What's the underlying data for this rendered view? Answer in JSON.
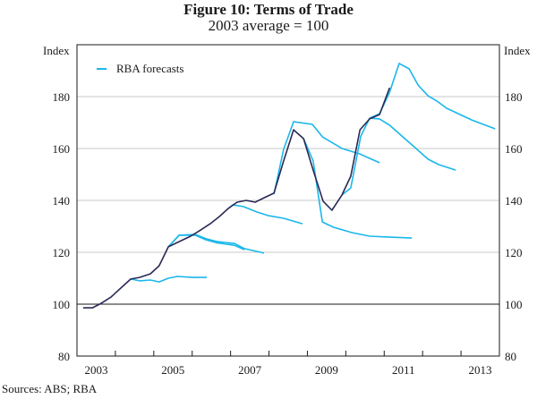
{
  "chart_data": {
    "type": "line",
    "title": "Figure 10: Terms of Trade",
    "subtitle": "2003 average = 100",
    "ylabel_left": "Index",
    "ylabel_right": "Index",
    "xlabel": "",
    "xlim": [
      2003,
      2014
    ],
    "ylim": [
      80,
      200
    ],
    "y_ticks": [
      80,
      100,
      120,
      140,
      160,
      180
    ],
    "x_tick_labels": [
      "2003",
      "2005",
      "2007",
      "2009",
      "2011",
      "2013"
    ],
    "x_tick_label_years": [
      2003,
      2005,
      2007,
      2009,
      2011,
      2013
    ],
    "grid": true,
    "reference_line": 100,
    "legend": {
      "position": "top-left",
      "entries": [
        {
          "label": "RBA forecasts",
          "color": "#1ab7ea"
        }
      ]
    },
    "colors": {
      "actual": "#2a2a55",
      "forecast": "#1ab7ea",
      "grid": "#c8c8c8",
      "axis": "#1a1a1a"
    },
    "series": [
      {
        "name": "Actual",
        "x": [
          2003.16,
          2003.4,
          2003.63,
          2003.89,
          2004.17,
          2004.4,
          2004.63,
          2004.91,
          2005.14,
          2005.38,
          2005.66,
          2005.96,
          2006.19,
          2006.47,
          2006.71,
          2006.94,
          2007.17,
          2007.41,
          2007.64,
          2007.87,
          2008.13,
          2008.38,
          2008.64,
          2008.9,
          2009.15,
          2009.41,
          2009.64,
          2009.9,
          2010.13,
          2010.37,
          2010.62,
          2010.88,
          2011.14
        ],
        "values": [
          98.6,
          98.6,
          100.3,
          102.8,
          106.6,
          109.7,
          110.3,
          111.7,
          114.8,
          122.1,
          124.1,
          126.2,
          128.3,
          131.0,
          133.8,
          136.9,
          139.3,
          140.0,
          139.3,
          141.0,
          142.8,
          155.2,
          167.2,
          163.8,
          151.7,
          139.7,
          136.2,
          142.1,
          149.3,
          167.2,
          171.4,
          173.1,
          183.4
        ]
      },
      {
        "name": "RBA forecast 1",
        "x": [
          2004.4,
          2004.63,
          2004.91,
          2005.14,
          2005.38,
          2005.61,
          2006.03,
          2006.38
        ],
        "values": [
          109.7,
          109.0,
          109.3,
          108.6,
          110.0,
          110.7,
          110.3,
          110.3
        ]
      },
      {
        "name": "RBA forecast 2",
        "x": [
          2005.38,
          2005.66,
          2006.08,
          2006.36,
          2006.66,
          2007.1,
          2007.36,
          2007.87
        ],
        "values": [
          122.1,
          126.6,
          126.9,
          125.2,
          124.1,
          123.4,
          121.4,
          119.7
        ]
      },
      {
        "name": "RBA forecast 2b",
        "x": [
          2005.38,
          2005.66,
          2006.08,
          2006.36,
          2006.66,
          2007.1,
          2007.36
        ],
        "values": [
          122.1,
          126.6,
          126.6,
          124.8,
          123.6,
          122.7,
          121.0
        ]
      },
      {
        "name": "RBA forecast 3",
        "x": [
          2006.94,
          2007.06,
          2007.34,
          2007.69,
          2007.99,
          2008.38,
          2008.87
        ],
        "values": [
          136.9,
          138.3,
          137.6,
          135.5,
          134.1,
          133.1,
          131.0
        ]
      },
      {
        "name": "RBA forecast 4",
        "x": [
          2008.13,
          2008.38,
          2008.64,
          2009.13,
          2009.39,
          2009.9,
          2010.37,
          2010.62,
          2010.88
        ],
        "values": [
          142.4,
          159.7,
          170.3,
          169.3,
          164.5,
          160.0,
          157.9,
          156.2,
          154.5
        ]
      },
      {
        "name": "RBA forecast 5",
        "x": [
          2008.9,
          2009.15,
          2009.39,
          2009.67,
          2010.16,
          2010.62,
          2011.09,
          2011.72
        ],
        "values": [
          163.8,
          155.2,
          131.7,
          129.7,
          127.6,
          126.2,
          125.9,
          125.5
        ]
      },
      {
        "name": "RBA forecast 6",
        "x": [
          2009.9,
          2010.13,
          2010.39,
          2010.62,
          2010.88,
          2011.14,
          2011.48,
          2011.83,
          2012.14,
          2012.42,
          2012.86
        ],
        "values": [
          142.1,
          144.8,
          164.8,
          171.7,
          171.4,
          169.0,
          164.5,
          160.0,
          155.9,
          153.8,
          151.7
        ]
      },
      {
        "name": "RBA forecast 7",
        "x": [
          2010.62,
          2010.88,
          2011.14,
          2011.39,
          2011.65,
          2011.88,
          2012.14,
          2012.37,
          2012.63,
          2012.93,
          2013.28,
          2013.89
        ],
        "values": [
          171.7,
          173.4,
          181.7,
          192.8,
          190.7,
          184.5,
          180.3,
          178.3,
          175.5,
          173.4,
          171.0,
          167.6
        ]
      }
    ]
  },
  "source": "Sources:  ABS; RBA"
}
